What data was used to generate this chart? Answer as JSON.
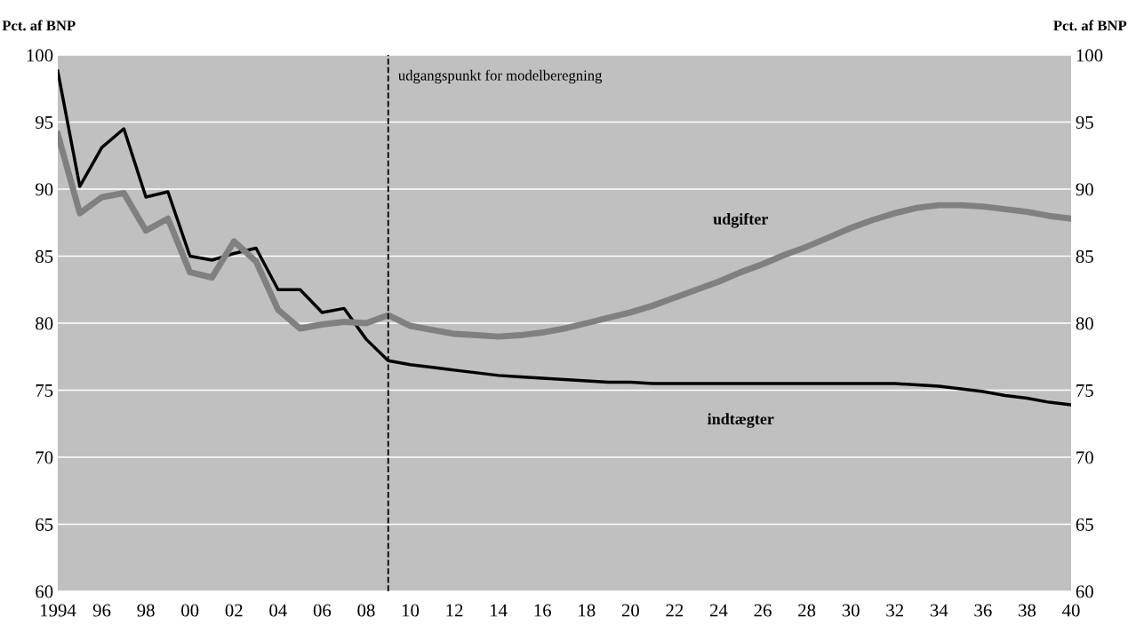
{
  "chart_data": {
    "type": "line",
    "ylabel": "Pct. af BNP",
    "y2label": "Pct. af BNP",
    "x": [
      1994,
      1995,
      1996,
      1997,
      1998,
      1999,
      2000,
      2001,
      2002,
      2003,
      2004,
      2005,
      2006,
      2007,
      2008,
      2009,
      2010,
      2011,
      2012,
      2013,
      2014,
      2015,
      2016,
      2017,
      2018,
      2019,
      2020,
      2021,
      2022,
      2023,
      2024,
      2025,
      2026,
      2027,
      2028,
      2029,
      2030,
      2031,
      2032,
      2033,
      2034,
      2035,
      2036,
      2037,
      2038,
      2039,
      2040
    ],
    "series": [
      {
        "name": "udgifter",
        "color": "#808080",
        "values": [
          94.1,
          88.2,
          89.4,
          89.7,
          86.9,
          87.8,
          83.8,
          83.4,
          86.1,
          84.6,
          81.0,
          79.6,
          79.9,
          80.1,
          80.0,
          80.6,
          79.8,
          79.5,
          79.2,
          79.1,
          79.0,
          79.1,
          79.3,
          79.6,
          80.0,
          80.4,
          80.8,
          81.3,
          81.9,
          82.5,
          83.1,
          83.8,
          84.4,
          85.1,
          85.7,
          86.4,
          87.1,
          87.7,
          88.2,
          88.6,
          88.8,
          88.8,
          88.7,
          88.5,
          88.3,
          88.0,
          87.8
        ]
      },
      {
        "name": "indtægter",
        "color": "#000000",
        "values": [
          98.8,
          90.2,
          93.1,
          94.5,
          89.4,
          89.8,
          85.0,
          84.7,
          85.2,
          85.6,
          82.5,
          82.5,
          80.8,
          81.1,
          78.8,
          77.2,
          76.9,
          76.7,
          76.5,
          76.3,
          76.1,
          76.0,
          75.9,
          75.8,
          75.7,
          75.6,
          75.6,
          75.5,
          75.5,
          75.5,
          75.5,
          75.5,
          75.5,
          75.5,
          75.5,
          75.5,
          75.5,
          75.5,
          75.5,
          75.4,
          75.3,
          75.1,
          74.9,
          74.6,
          74.4,
          74.1,
          73.9
        ]
      }
    ],
    "xlim": [
      1994,
      2040
    ],
    "xticks": [
      {
        "value": 1994,
        "label": "1994"
      },
      {
        "value": 1996,
        "label": "96"
      },
      {
        "value": 1998,
        "label": "98"
      },
      {
        "value": 2000,
        "label": "00"
      },
      {
        "value": 2002,
        "label": "02"
      },
      {
        "value": 2004,
        "label": "04"
      },
      {
        "value": 2006,
        "label": "06"
      },
      {
        "value": 2008,
        "label": "08"
      },
      {
        "value": 2010,
        "label": "10"
      },
      {
        "value": 2012,
        "label": "12"
      },
      {
        "value": 2014,
        "label": "14"
      },
      {
        "value": 2016,
        "label": "16"
      },
      {
        "value": 2018,
        "label": "18"
      },
      {
        "value": 2020,
        "label": "20"
      },
      {
        "value": 2022,
        "label": "22"
      },
      {
        "value": 2024,
        "label": "24"
      },
      {
        "value": 2026,
        "label": "26"
      },
      {
        "value": 2028,
        "label": "28"
      },
      {
        "value": 2030,
        "label": "30"
      },
      {
        "value": 2032,
        "label": "32"
      },
      {
        "value": 2034,
        "label": "34"
      },
      {
        "value": 2036,
        "label": "36"
      },
      {
        "value": 2038,
        "label": "38"
      },
      {
        "value": 2040,
        "label": "40"
      }
    ],
    "ylim": [
      60,
      100
    ],
    "yticks": [
      60,
      65,
      70,
      75,
      80,
      85,
      90,
      95,
      100
    ],
    "y2lim": [
      60,
      100
    ],
    "y2ticks": [
      60,
      65,
      70,
      75,
      80,
      85,
      90,
      95,
      100
    ],
    "ref_lines": [
      {
        "axis": "x",
        "value": 2009,
        "label": "udgangspunkt for modelberegning",
        "color": "#000000",
        "line_style": "dashed"
      }
    ],
    "grid": "y",
    "legend": false,
    "marker": "none",
    "line_style": "solid"
  }
}
